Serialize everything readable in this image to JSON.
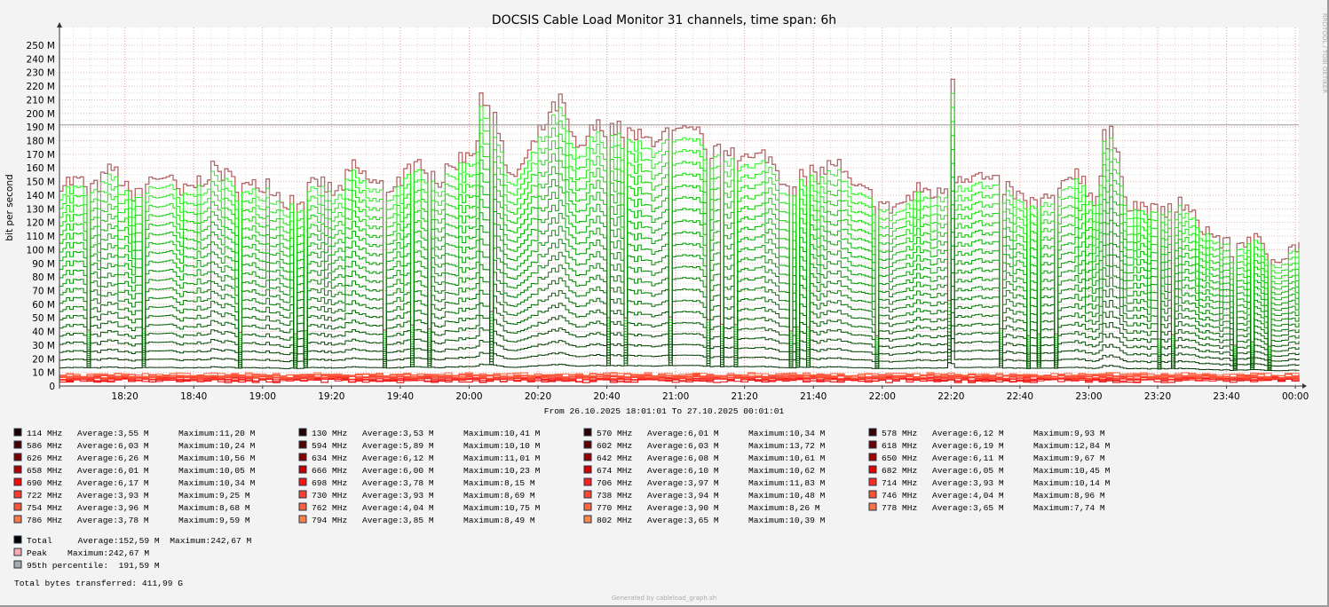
{
  "chart_data": {
    "type": "area",
    "title": "DOCSIS Cable Load Monitor 31 channels, time span: 6h",
    "ylabel": "bit per second",
    "xlabel": "From 26.10.2025 18:01:01 To 27.10.2025 00:01:01",
    "ylim": [
      0,
      250
    ],
    "y_unit": "M",
    "y_ticks": [
      "0",
      "10 M",
      "20 M",
      "30 M",
      "40 M",
      "50 M",
      "60 M",
      "70 M",
      "80 M",
      "90 M",
      "100 M",
      "110 M",
      "120 M",
      "130 M",
      "140 M",
      "150 M",
      "160 M",
      "170 M",
      "180 M",
      "190 M",
      "200 M",
      "210 M",
      "220 M",
      "230 M",
      "240 M",
      "250 M"
    ],
    "x_ticks": [
      "18:20",
      "18:40",
      "19:00",
      "19:20",
      "19:40",
      "20:00",
      "20:20",
      "20:40",
      "21:00",
      "21:20",
      "21:40",
      "22:00",
      "22:20",
      "22:40",
      "23:00",
      "23:20",
      "23:40",
      "00:00"
    ],
    "grid": true,
    "stacked": true,
    "total_series": {
      "name": "Total",
      "x": [
        "18:01",
        "18:05",
        "18:10",
        "18:15",
        "18:20",
        "18:25",
        "18:30",
        "18:35",
        "18:40",
        "18:45",
        "18:50",
        "18:55",
        "19:00",
        "19:05",
        "19:10",
        "19:15",
        "19:20",
        "19:25",
        "19:30",
        "19:35",
        "19:40",
        "19:45",
        "19:50",
        "19:55",
        "20:00",
        "20:05",
        "20:10",
        "20:15",
        "20:20",
        "20:25",
        "20:30",
        "20:35",
        "20:40",
        "20:45",
        "20:50",
        "20:55",
        "21:00",
        "21:05",
        "21:10",
        "21:15",
        "21:20",
        "21:25",
        "21:30",
        "21:35",
        "21:40",
        "21:45",
        "21:50",
        "21:55",
        "22:00",
        "22:05",
        "22:10",
        "22:15",
        "22:20",
        "22:25",
        "22:30",
        "22:35",
        "22:40",
        "22:45",
        "22:50",
        "22:55",
        "23:00",
        "23:05",
        "23:10",
        "23:15",
        "23:20",
        "23:25",
        "23:30",
        "23:35",
        "23:40",
        "23:45",
        "23:50",
        "23:55",
        "00:00"
      ],
      "values": [
        150,
        150,
        145,
        160,
        140,
        150,
        155,
        140,
        150,
        160,
        150,
        145,
        150,
        135,
        140,
        150,
        140,
        160,
        150,
        145,
        155,
        165,
        150,
        165,
        175,
        215,
        150,
        165,
        190,
        210,
        170,
        190,
        190,
        185,
        180,
        185,
        185,
        185,
        170,
        175,
        165,
        170,
        150,
        155,
        155,
        165,
        145,
        140,
        130,
        135,
        145,
        140,
        155,
        155,
        150,
        145,
        135,
        135,
        140,
        160,
        135,
        185,
        135,
        130,
        125,
        135,
        120,
        110,
        100,
        110,
        100,
        95,
        105
      ]
    },
    "percentile_95": 191.59,
    "legend": [
      {
        "label": "114 MHz",
        "average": "3,55 M",
        "maximum": "11,20 M",
        "color": "#1e0000"
      },
      {
        "label": "130 MHz",
        "average": "3,53 M",
        "maximum": "10,41 M",
        "color": "#260000"
      },
      {
        "label": "570 MHz",
        "average": "6,01 M",
        "maximum": "10,34 M",
        "color": "#2e0000"
      },
      {
        "label": "578 MHz",
        "average": "6,12 M",
        "maximum": "9,93 M",
        "color": "#3a0000"
      },
      {
        "label": "586 MHz",
        "average": "6,03 M",
        "maximum": "10,24 M",
        "color": "#460000"
      },
      {
        "label": "594 MHz",
        "average": "5,89 M",
        "maximum": "10,10 M",
        "color": "#520000"
      },
      {
        "label": "602 MHz",
        "average": "6,03 M",
        "maximum": "13,72 M",
        "color": "#5e0000"
      },
      {
        "label": "618 MHz",
        "average": "6,19 M",
        "maximum": "12,84 M",
        "color": "#6a0000"
      },
      {
        "label": "626 MHz",
        "average": "6,26 M",
        "maximum": "10,56 M",
        "color": "#7a0000"
      },
      {
        "label": "634 MHz",
        "average": "6,12 M",
        "maximum": "11,01 M",
        "color": "#880000"
      },
      {
        "label": "642 MHz",
        "average": "6,08 M",
        "maximum": "10,61 M",
        "color": "#960000"
      },
      {
        "label": "650 MHz",
        "average": "6,11 M",
        "maximum": "9,67 M",
        "color": "#a40000"
      },
      {
        "label": "658 MHz",
        "average": "6,01 M",
        "maximum": "10,05 M",
        "color": "#b40000"
      },
      {
        "label": "666 MHz",
        "average": "6,00 M",
        "maximum": "10,23 M",
        "color": "#c20000"
      },
      {
        "label": "674 MHz",
        "average": "6,10 M",
        "maximum": "10,62 M",
        "color": "#d40000"
      },
      {
        "label": "682 MHz",
        "average": "6,05 M",
        "maximum": "10,45 M",
        "color": "#e60000"
      },
      {
        "label": "690 MHz",
        "average": "6,17 M",
        "maximum": "10,34 M",
        "color": "#f40a0a"
      },
      {
        "label": "698 MHz",
        "average": "3,78 M",
        "maximum": "8,15 M",
        "color": "#fa1414"
      },
      {
        "label": "706 MHz",
        "average": "3,97 M",
        "maximum": "11,83 M",
        "color": "#fc2020"
      },
      {
        "label": "714 MHz",
        "average": "3,93 M",
        "maximum": "10,14 M",
        "color": "#fc2c24"
      },
      {
        "label": "722 MHz",
        "average": "3,93 M",
        "maximum": "9,25 M",
        "color": "#fc3828"
      },
      {
        "label": "730 MHz",
        "average": "3,93 M",
        "maximum": "8,69 M",
        "color": "#fc402c"
      },
      {
        "label": "738 MHz",
        "average": "3,94 M",
        "maximum": "10,48 M",
        "color": "#fc4830"
      },
      {
        "label": "746 MHz",
        "average": "4,04 M",
        "maximum": "8,96 M",
        "color": "#fc5034"
      },
      {
        "label": "754 MHz",
        "average": "3,96 M",
        "maximum": "8,68 M",
        "color": "#fc5838"
      },
      {
        "label": "762 MHz",
        "average": "4,04 M",
        "maximum": "10,75 M",
        "color": "#fc603c"
      },
      {
        "label": "770 MHz",
        "average": "3,90 M",
        "maximum": "8,26 M",
        "color": "#fc6840"
      },
      {
        "label": "778 MHz",
        "average": "3,65 M",
        "maximum": "7,74 M",
        "color": "#fc7044"
      },
      {
        "label": "786 MHz",
        "average": "3,78 M",
        "maximum": "9,59 M",
        "color": "#fc7848"
      },
      {
        "label": "794 MHz",
        "average": "3,85 M",
        "maximum": "8,49 M",
        "color": "#fc804c"
      },
      {
        "label": "802 MHz",
        "average": "3,65 M",
        "maximum": "10,39 M",
        "color": "#fc8850"
      }
    ],
    "summary": {
      "total_text": "Total     Average:152,59 M  Maximum:242,67 M",
      "total_color": "#000000",
      "peak_text": "Peak    Maximum:242,67 M",
      "peak_color": "#ffaaaa",
      "percentile_text": "95th percentile:  191,59 M",
      "percentile_color": "#aaaaaa",
      "bytes_text": "Total bytes transferred: 411,99 G"
    }
  },
  "watermark": "RRDTOOL / TOBI OETIKER",
  "footer": "Generated by cableload_graph.sh"
}
